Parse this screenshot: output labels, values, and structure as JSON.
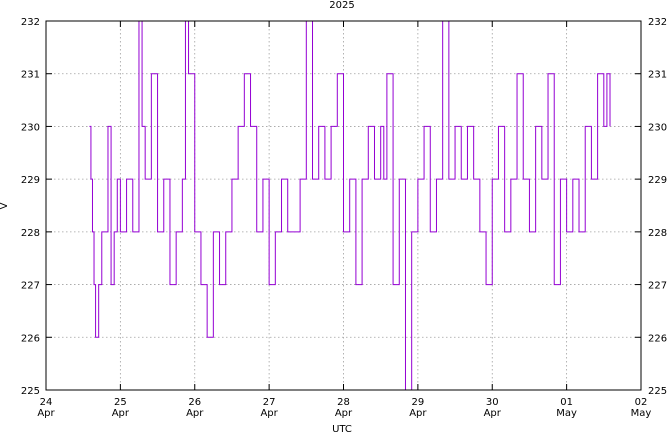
{
  "chart_data": {
    "type": "line",
    "title": "2025",
    "xlabel": "UTC",
    "ylabel": "V",
    "ylim": [
      225,
      232
    ],
    "xlim": [
      "2025-04-24",
      "2025-05-02"
    ],
    "y_ticks": [
      "225",
      "226",
      "227",
      "228",
      "229",
      "230",
      "231",
      "232"
    ],
    "x_ticks": [
      {
        "day": "24",
        "month": "Apr"
      },
      {
        "day": "25",
        "month": "Apr"
      },
      {
        "day": "26",
        "month": "Apr"
      },
      {
        "day": "27",
        "month": "Apr"
      },
      {
        "day": "28",
        "month": "Apr"
      },
      {
        "day": "29",
        "month": "Apr"
      },
      {
        "day": "30",
        "month": "Apr"
      },
      {
        "day": "01",
        "month": "May"
      },
      {
        "day": "02",
        "month": "May"
      }
    ],
    "grid": true,
    "y_axis_mirrored_right": true,
    "series_color": "#9400d3",
    "series": [
      {
        "x": [
          "2025-04-24 14:00",
          "2025-04-24 14:30",
          "2025-04-24 15:00",
          "2025-04-24 15:30",
          "2025-04-24 16:00",
          "2025-04-24 17:00",
          "2025-04-24 18:00",
          "2025-04-24 19:00",
          "2025-04-24 20:00",
          "2025-04-24 21:00",
          "2025-04-24 22:00",
          "2025-04-24 23:00",
          "2025-04-25 00:00",
          "2025-04-25 02:00",
          "2025-04-25 04:00",
          "2025-04-25 06:00",
          "2025-04-25 07:00",
          "2025-04-25 08:00",
          "2025-04-25 10:00",
          "2025-04-25 12:00",
          "2025-04-25 14:00",
          "2025-04-25 16:00",
          "2025-04-25 18:00",
          "2025-04-25 20:00",
          "2025-04-25 21:00",
          "2025-04-25 22:00",
          "2025-04-26 00:00",
          "2025-04-26 02:00",
          "2025-04-26 04:00",
          "2025-04-26 06:00",
          "2025-04-26 08:00",
          "2025-04-26 10:00",
          "2025-04-26 12:00",
          "2025-04-26 14:00",
          "2025-04-26 16:00",
          "2025-04-26 18:00",
          "2025-04-26 20:00",
          "2025-04-26 22:00",
          "2025-04-27 00:00",
          "2025-04-27 02:00",
          "2025-04-27 04:00",
          "2025-04-27 06:00",
          "2025-04-27 08:00",
          "2025-04-27 10:00",
          "2025-04-27 12:00",
          "2025-04-27 14:00",
          "2025-04-27 16:00",
          "2025-04-27 18:00",
          "2025-04-27 20:00",
          "2025-04-27 22:00",
          "2025-04-28 00:00",
          "2025-04-28 02:00",
          "2025-04-28 04:00",
          "2025-04-28 06:00",
          "2025-04-28 08:00",
          "2025-04-28 10:00",
          "2025-04-28 12:00",
          "2025-04-28 13:00",
          "2025-04-28 14:00",
          "2025-04-28 16:00",
          "2025-04-28 18:00",
          "2025-04-28 20:00",
          "2025-04-28 22:00",
          "2025-04-29 00:00",
          "2025-04-29 02:00",
          "2025-04-29 04:00",
          "2025-04-29 06:00",
          "2025-04-29 08:00",
          "2025-04-29 10:00",
          "2025-04-29 12:00",
          "2025-04-29 14:00",
          "2025-04-29 16:00",
          "2025-04-29 18:00",
          "2025-04-29 20:00",
          "2025-04-29 22:00",
          "2025-04-30 00:00",
          "2025-04-30 02:00",
          "2025-04-30 04:00",
          "2025-04-30 06:00",
          "2025-04-30 08:00",
          "2025-04-30 10:00",
          "2025-04-30 12:00",
          "2025-04-30 14:00",
          "2025-04-30 16:00",
          "2025-04-30 18:00",
          "2025-04-30 20:00",
          "2025-04-30 22:00",
          "2025-05-01 00:00",
          "2025-05-01 02:00",
          "2025-05-01 04:00",
          "2025-05-01 06:00",
          "2025-05-01 08:00",
          "2025-05-01 10:00",
          "2025-05-01 12:00",
          "2025-05-01 13:00",
          "2025-05-01 14:00"
        ],
        "values": [
          230,
          229,
          228,
          227,
          226,
          227,
          228,
          228,
          230,
          227,
          228,
          229,
          228,
          229,
          228,
          232,
          230,
          229,
          231,
          228,
          229,
          227,
          228,
          229,
          232,
          231,
          228,
          227,
          226,
          228,
          227,
          228,
          229,
          230,
          231,
          230,
          228,
          229,
          227,
          228,
          229,
          228,
          228,
          229,
          232,
          229,
          230,
          229,
          230,
          231,
          228,
          229,
          227,
          229,
          230,
          229,
          230,
          229,
          231,
          227,
          229,
          225,
          228,
          229,
          230,
          228,
          229,
          232,
          229,
          230,
          229,
          230,
          229,
          228,
          227,
          229,
          230,
          228,
          229,
          231,
          229,
          228,
          230,
          229,
          231,
          227,
          229,
          228,
          229,
          228,
          230,
          229,
          231,
          230,
          231,
          230
        ]
      }
    ]
  }
}
